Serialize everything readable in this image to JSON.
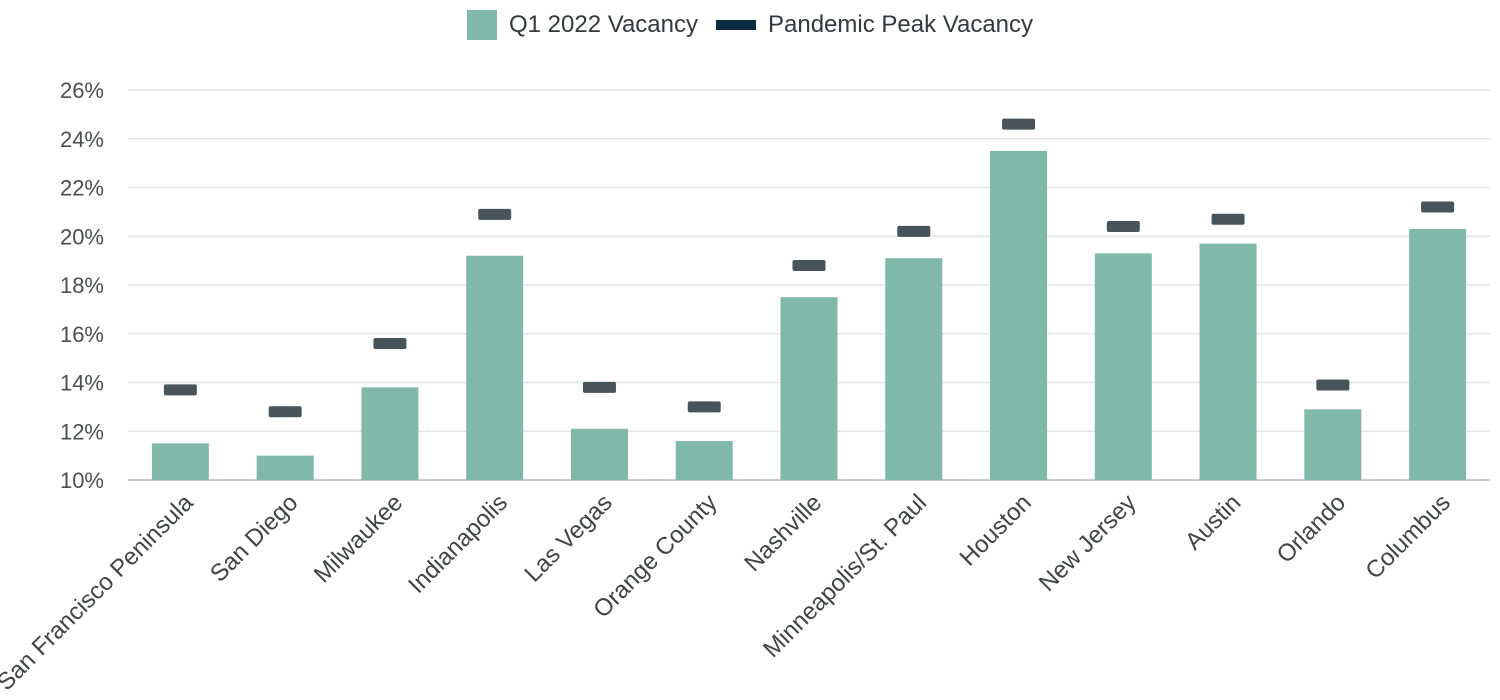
{
  "chart_data": {
    "type": "bar",
    "categories": [
      "San Francisco Peninsula",
      "San Diego",
      "Milwaukee",
      "Indianapolis",
      "Las Vegas",
      "Orange County",
      "Nashville",
      "Minneapolis/St. Paul",
      "Houston",
      "New Jersey",
      "Austin",
      "Orlando",
      "Columbus"
    ],
    "series": [
      {
        "name": "Q1 2022 Vacancy",
        "values": [
          11.5,
          11.0,
          13.8,
          19.2,
          12.1,
          11.6,
          17.5,
          19.1,
          23.5,
          19.3,
          19.7,
          12.9,
          20.3
        ],
        "color": "#80b8aa"
      },
      {
        "name": "Pandemic Peak Vacancy",
        "values": [
          13.7,
          12.8,
          15.6,
          20.9,
          13.8,
          13.0,
          18.8,
          20.2,
          24.6,
          20.4,
          20.7,
          13.9,
          21.2
        ],
        "color": "#0a2b40",
        "marker_color": "#47545a"
      }
    ],
    "ylim": [
      10,
      26
    ],
    "yticks": [
      10,
      12,
      14,
      16,
      18,
      20,
      22,
      24,
      26
    ],
    "ytick_format": "%",
    "title": "",
    "xlabel": "",
    "ylabel": "",
    "grid": true,
    "legend_position": "top-center"
  }
}
